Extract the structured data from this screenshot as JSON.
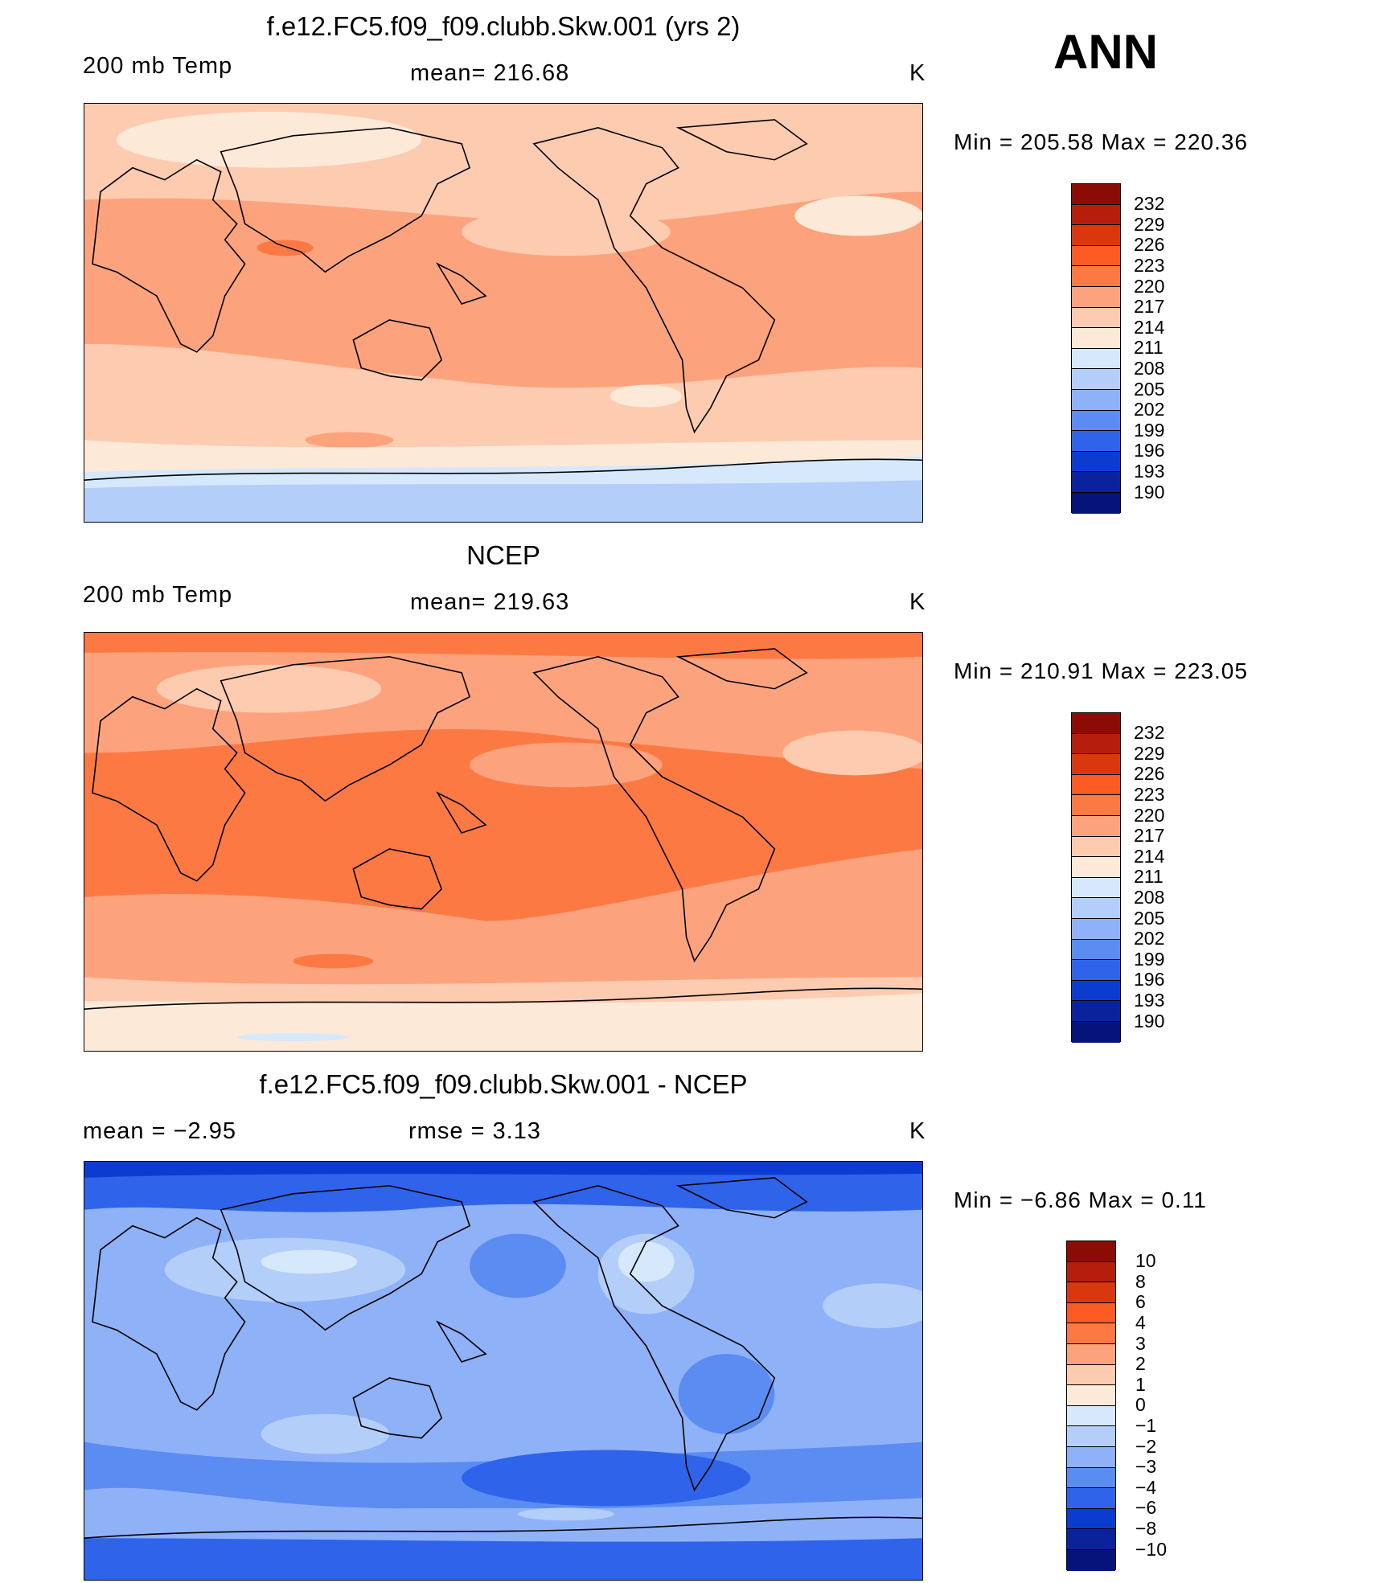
{
  "season": "ANN",
  "panels": [
    {
      "title": "f.e12.FC5.f09_f09.clubb.Skw.001 (yrs 2)",
      "left_label": "200 mb Temp",
      "center_label": "mean=  216.68",
      "units": "K",
      "minmax": "Min  =  205.58  Max  =  220.36",
      "colorbar_labels": [
        "232",
        "229",
        "226",
        "223",
        "220",
        "217",
        "214",
        "211",
        "208",
        "205",
        "202",
        "199",
        "196",
        "193",
        "190"
      ]
    },
    {
      "title": "NCEP",
      "left_label": "200 mb Temp",
      "center_label": "mean=  219.63",
      "units": "K",
      "minmax": "Min  =  210.91  Max  =  223.05",
      "colorbar_labels": [
        "232",
        "229",
        "226",
        "223",
        "220",
        "217",
        "214",
        "211",
        "208",
        "205",
        "202",
        "199",
        "196",
        "193",
        "190"
      ]
    },
    {
      "title": "f.e12.FC5.f09_f09.clubb.Skw.001 - NCEP",
      "left_label": "mean  =     −2.95",
      "center_label": "rmse  =      3.13",
      "units": "K",
      "minmax": "Min  =     −6.86  Max  =      0.11",
      "colorbar_labels": [
        "10",
        "8",
        "6",
        "4",
        "3",
        "2",
        "1",
        "0",
        "−1",
        "−2",
        "−3",
        "−4",
        "−6",
        "−8",
        "−10"
      ]
    }
  ],
  "colors": {
    "abs_scale": [
      "#8b0b05",
      "#b51e0c",
      "#d9380e",
      "#fb5a22",
      "#fd7944",
      "#fca37e",
      "#fdcbb0",
      "#fde9d8",
      "#d6e8fb",
      "#b4cefa",
      "#8fb1f8",
      "#5b8cf2",
      "#2f64ea",
      "#0c3ccf",
      "#0a229b",
      "#06137a"
    ],
    "diff_scale": [
      "#8b0b05",
      "#b51e0c",
      "#d9380e",
      "#fb5a22",
      "#fd7944",
      "#fca37e",
      "#fdcbb0",
      "#fde9d8",
      "#d6e8fb",
      "#b4cefa",
      "#8fb1f8",
      "#5b8cf2",
      "#2f64ea",
      "#0c3ccf",
      "#0a229b",
      "#06137a"
    ]
  }
}
